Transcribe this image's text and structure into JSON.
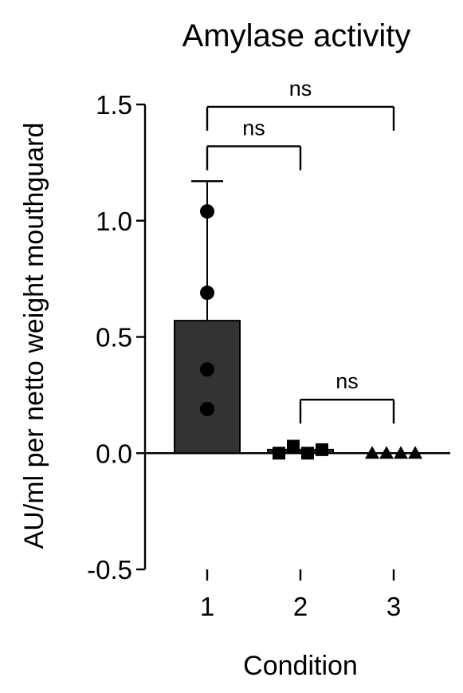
{
  "chart_data": {
    "type": "bar",
    "title": "Amylase activity",
    "xlabel": "Condition",
    "ylabel": "AU/ml per netto weight mouthguard",
    "categories": [
      "1",
      "2",
      "3"
    ],
    "ylim": [
      -0.5,
      1.5
    ],
    "yticks": [
      {
        "value": -0.5,
        "label": "-0.5"
      },
      {
        "value": 0.0,
        "label": "0.0"
      },
      {
        "value": 0.5,
        "label": "0.5"
      },
      {
        "value": 1.0,
        "label": "1.0"
      },
      {
        "value": 1.5,
        "label": "1.5"
      }
    ],
    "grid": false,
    "legend": "none",
    "bar_color": "#333333",
    "series": [
      {
        "category": "1",
        "mean": 0.57,
        "sd_upper": 1.17,
        "marker": "circle",
        "points": [
          1.04,
          0.69,
          0.36,
          0.19
        ]
      },
      {
        "category": "2",
        "mean": 0.015,
        "marker": "square",
        "points": [
          0.0,
          0.03,
          0.0,
          0.015
        ]
      },
      {
        "category": "3",
        "mean": 0.0,
        "marker": "triangle",
        "points": [
          0.0,
          0.0,
          0.0,
          0.0
        ]
      }
    ],
    "significance": [
      {
        "from": "1",
        "to": "3",
        "label": "ns",
        "y": 1.49
      },
      {
        "from": "1",
        "to": "2",
        "label": "ns",
        "y": 1.32
      },
      {
        "from": "2",
        "to": "3",
        "label": "ns",
        "y": 0.23
      }
    ]
  }
}
